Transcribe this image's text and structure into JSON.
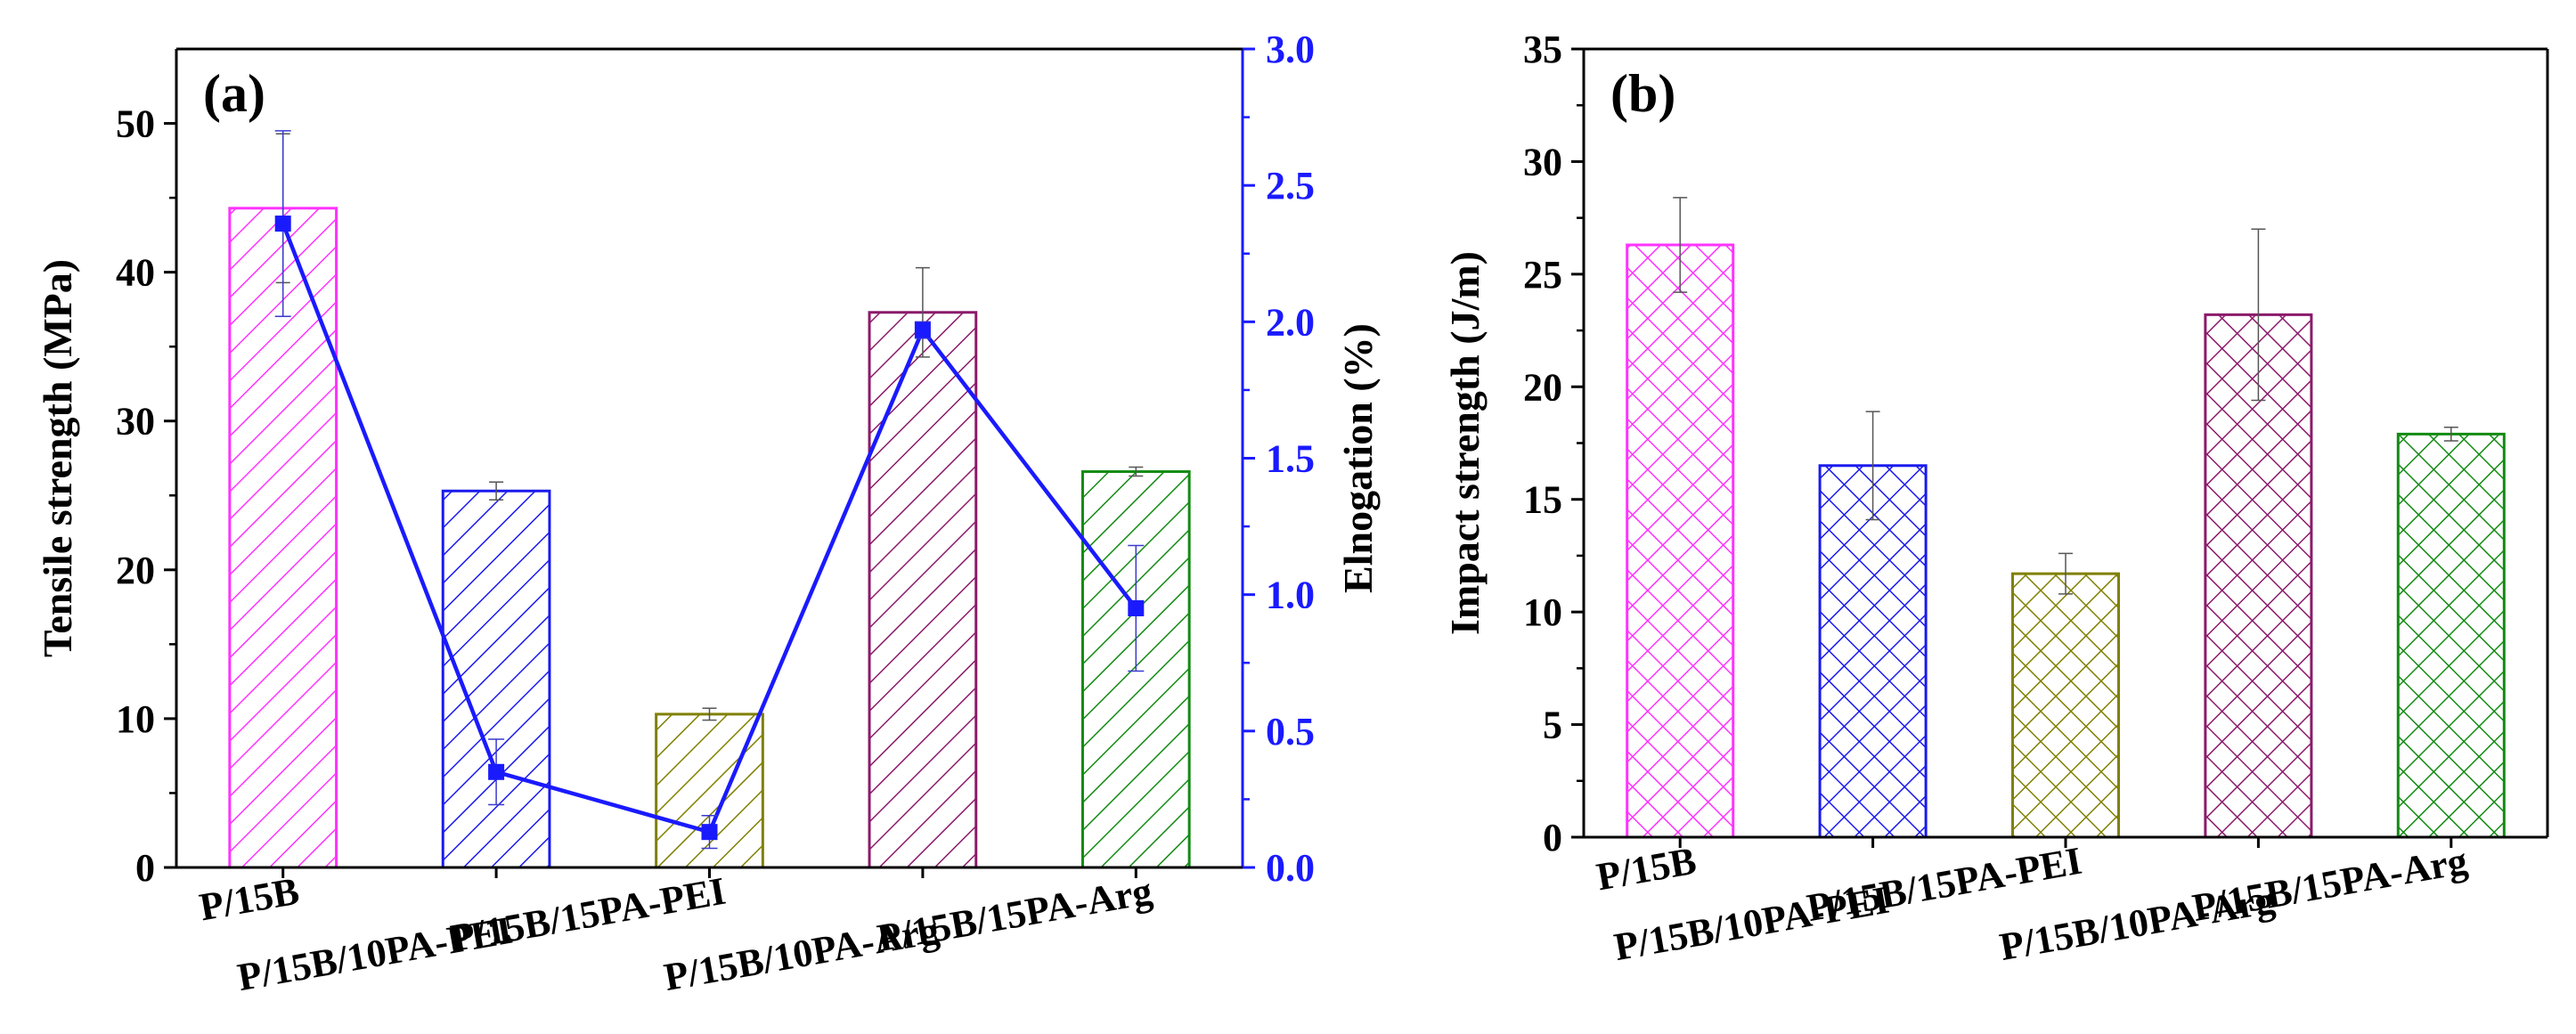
{
  "chart_data": [
    {
      "id": "a",
      "type": "bar",
      "panel_label": "(a)",
      "categories": [
        "P/15B",
        "P/15B/10PA-PEI",
        "P/15B/15PA-PEI",
        "P/15B/10PA-Arg",
        "P/15B/15PA-Arg"
      ],
      "ylabel": "Tensile strength (MPa)",
      "ylim": [
        0,
        55
      ],
      "yticks": [
        0,
        10,
        20,
        30,
        40,
        50
      ],
      "y2label": "Elnogation (%)",
      "y2lim": [
        0,
        3.0
      ],
      "y2ticks": [
        "0.0",
        "0.5",
        "1.0",
        "1.5",
        "2.0",
        "2.5",
        "3.0"
      ],
      "series": [
        {
          "name": "Tensile strength",
          "kind": "bar",
          "pattern": "diagonal-hatch",
          "values": [
            44.3,
            25.3,
            10.3,
            37.3,
            26.6
          ],
          "errors": [
            5.0,
            0.6,
            0.4,
            3.0,
            0.3
          ],
          "colors": [
            "#ff33ff",
            "#1a1aee",
            "#808000",
            "#8b1a6b",
            "#138b13"
          ]
        },
        {
          "name": "Elongation",
          "kind": "line",
          "axis": "right",
          "color": "#1a1aff",
          "values": [
            2.36,
            0.35,
            0.13,
            1.97,
            0.95
          ],
          "errors": [
            0.34,
            0.12,
            0.06,
            0.03,
            0.23
          ]
        }
      ]
    },
    {
      "id": "b",
      "type": "bar",
      "panel_label": "(b)",
      "categories": [
        "P/15B",
        "P/15B/10PA-PEI",
        "P/15B/15PA-PEI",
        "P/15B/10PA-Arg",
        "P/15B/15PA-Arg"
      ],
      "ylabel": "Impact strength (J/m)",
      "ylim": [
        0,
        35
      ],
      "yticks": [
        0,
        5,
        10,
        15,
        20,
        25,
        30,
        35
      ],
      "series": [
        {
          "name": "Impact strength",
          "kind": "bar",
          "pattern": "cross-hatch",
          "values": [
            26.3,
            16.5,
            11.7,
            23.2,
            17.9
          ],
          "errors": [
            2.1,
            2.4,
            0.9,
            3.8,
            0.3
          ],
          "colors": [
            "#ff33ff",
            "#1a1aee",
            "#808000",
            "#8b1a6b",
            "#138b13"
          ]
        }
      ]
    }
  ]
}
